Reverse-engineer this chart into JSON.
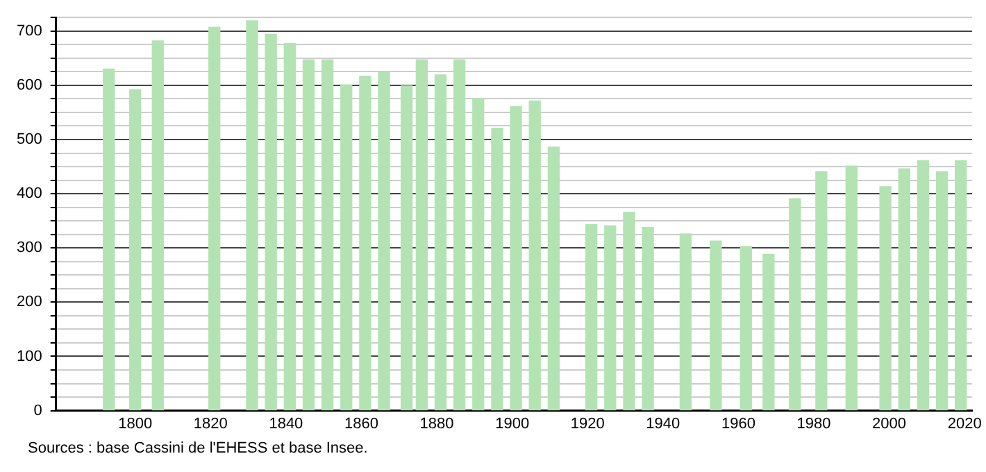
{
  "chart_data": {
    "type": "bar",
    "color": "#b3e3b3",
    "x": [
      1793,
      1800,
      1806,
      1821,
      1831,
      1836,
      1841,
      1846,
      1851,
      1856,
      1861,
      1866,
      1872,
      1876,
      1881,
      1886,
      1891,
      1896,
      1901,
      1906,
      1911,
      1921,
      1926,
      1931,
      1936,
      1946,
      1954,
      1962,
      1968,
      1975,
      1982,
      1990,
      1999,
      2004,
      2009,
      2014,
      2019
    ],
    "values": [
      630,
      592,
      682,
      707,
      719,
      694,
      677,
      647,
      647,
      601,
      617,
      624,
      599,
      647,
      619,
      647,
      576,
      521,
      561,
      571,
      486,
      343,
      341,
      366,
      338,
      326,
      313,
      303,
      288,
      391,
      441,
      451,
      413,
      446,
      461,
      441,
      461
    ],
    "xlim": [
      1779,
      2022
    ],
    "xticks": [
      1800,
      1820,
      1840,
      1860,
      1880,
      1900,
      1920,
      1940,
      1960,
      1980,
      2000,
      2020
    ],
    "ylim": [
      0,
      725
    ],
    "yticks": [
      0,
      {
        "value": 25,
        "label": null
      },
      {
        "value": 50,
        "label": null
      },
      {
        "value": 75,
        "label": null
      },
      100,
      {
        "value": 125,
        "label": null
      },
      {
        "value": 150,
        "label": null
      },
      {
        "value": 175,
        "label": null
      },
      200,
      {
        "value": 225,
        "label": null
      },
      {
        "value": 250,
        "label": null
      },
      {
        "value": 275,
        "label": null
      },
      300,
      {
        "value": 325,
        "label": null
      },
      {
        "value": 350,
        "label": null
      },
      {
        "value": 375,
        "label": null
      },
      400,
      {
        "value": 425,
        "label": null
      },
      {
        "value": 450,
        "label": null
      },
      {
        "value": 475,
        "label": null
      },
      500,
      {
        "value": 525,
        "label": null
      },
      {
        "value": 550,
        "label": null
      },
      {
        "value": 575,
        "label": null
      },
      600,
      {
        "value": 625,
        "label": null
      },
      {
        "value": 650,
        "label": null
      },
      {
        "value": 675,
        "label": null
      },
      700,
      {
        "value": 725,
        "label": null
      }
    ],
    "grid": "y",
    "legend": false,
    "annotations": [
      "Sources : base Cassini de l'EHESS et base Insee."
    ]
  }
}
